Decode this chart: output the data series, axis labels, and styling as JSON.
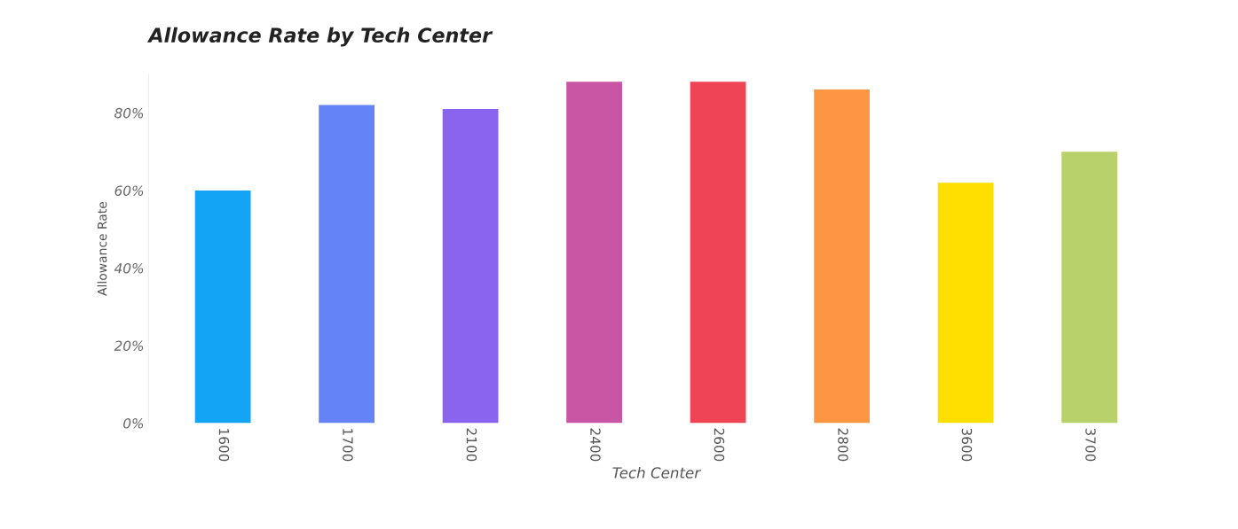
{
  "chart_data": {
    "type": "bar",
    "title": "Allowance Rate by Tech Center",
    "xlabel": "Tech Center",
    "ylabel": "Allowance Rate",
    "categories": [
      "1600",
      "1700",
      "2100",
      "2400",
      "2600",
      "2800",
      "3600",
      "3700"
    ],
    "values": [
      60,
      82,
      81,
      88,
      88,
      86,
      62,
      70
    ],
    "colors": [
      "#13a4f5",
      "#6383f7",
      "#8a63ee",
      "#c955a5",
      "#ef4455",
      "#fd9642",
      "#fedf00",
      "#b9d16a"
    ],
    "ylim": [
      0,
      90
    ],
    "yticks": [
      {
        "value": 0,
        "label": "0%"
      },
      {
        "value": 20,
        "label": "20%"
      },
      {
        "value": 40,
        "label": "40%"
      },
      {
        "value": 60,
        "label": "60%"
      },
      {
        "value": 80,
        "label": "80%"
      }
    ],
    "grid": false
  }
}
